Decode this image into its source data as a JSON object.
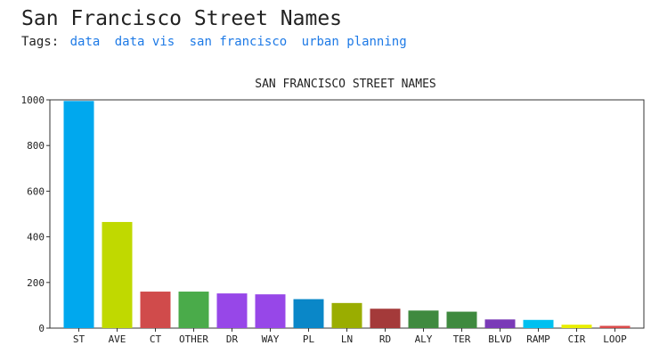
{
  "page": {
    "title": "San Francisco Street Names",
    "tags_label": "Tags:",
    "tags": [
      "data",
      "data vis",
      "san francisco",
      "urban planning"
    ]
  },
  "colors": {
    "tag_link": "#1e7ae6",
    "axis": "#333333"
  },
  "chart_data": {
    "type": "bar",
    "title": "SAN FRANCISCO STREET NAMES",
    "xlabel": "",
    "ylabel": "",
    "ylim": [
      0,
      1000
    ],
    "yticks": [
      0,
      200,
      400,
      600,
      800,
      1000
    ],
    "categories": [
      "ST",
      "AVE",
      "CT",
      "OTHER",
      "DR",
      "WAY",
      "PL",
      "LN",
      "RD",
      "ALY",
      "TER",
      "BLVD",
      "RAMP",
      "CIR",
      "LOOP"
    ],
    "values": [
      995,
      465,
      160,
      160,
      152,
      148,
      127,
      110,
      85,
      77,
      72,
      38,
      36,
      15,
      10
    ],
    "colors": [
      "#00a8ee",
      "#c0d900",
      "#d04b4b",
      "#4aab4a",
      "#9747e8",
      "#9747e8",
      "#0a87c8",
      "#9aad00",
      "#a43a3a",
      "#3f8a3f",
      "#3f8a3f",
      "#7a3ab7",
      "#00c0f0",
      "#e8ee00",
      "#d94a4a"
    ],
    "grid": false,
    "legend": "none"
  }
}
